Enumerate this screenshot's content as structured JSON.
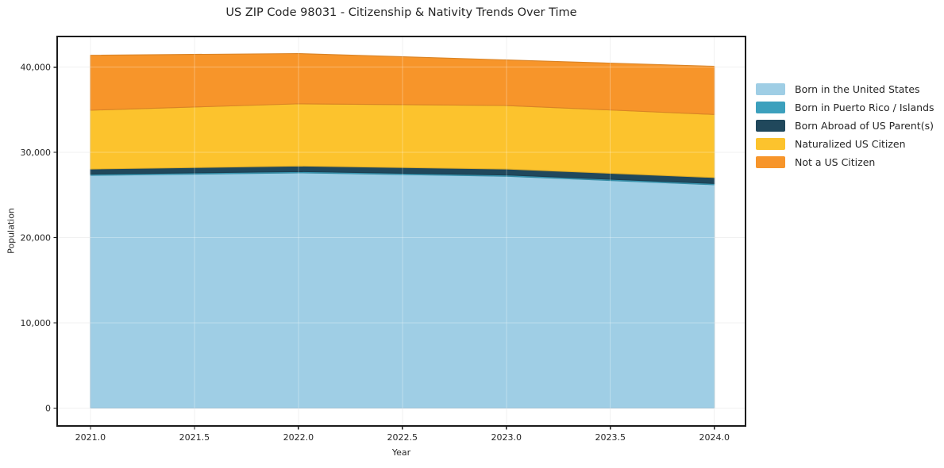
{
  "figure": {
    "background": "#ffffff",
    "spine_color": "#1a1a1a",
    "gridline_color": "#ebebeb",
    "text_color": "#262626"
  },
  "chart": {
    "title": "US ZIP Code 98031 - Citizenship & Nativity Trends Over Time",
    "xlabel": "Year",
    "ylabel": "Population",
    "x_ticks": [
      2021.0,
      2021.5,
      2022.0,
      2022.5,
      2023.0,
      2023.5,
      2024.0
    ],
    "x_ticklabels": [
      "2021.0",
      "2021.5",
      "2022.0",
      "2022.5",
      "2023.0",
      "2023.5",
      "2024.0"
    ],
    "y_ticks": [
      0,
      10000,
      20000,
      30000,
      40000
    ],
    "y_ticklabels": [
      "0",
      "10,000",
      "20,000",
      "30,000",
      "40,000"
    ]
  },
  "chart_data": {
    "type": "area",
    "stacked": true,
    "title": "US ZIP Code 98031 - Citizenship & Nativity Trends Over Time",
    "xlabel": "Year",
    "ylabel": "Population",
    "x": [
      2021,
      2022,
      2023,
      2024
    ],
    "series": [
      {
        "name": "Born in the United States",
        "color": "#9fcee5",
        "values": [
          27300,
          27600,
          27200,
          26200
        ]
      },
      {
        "name": "Born in Puerto Rico / Islands",
        "color": "#3ca0bd",
        "values": [
          150,
          150,
          150,
          150
        ]
      },
      {
        "name": "Born Abroad of US Parent(s)",
        "color": "#20485c",
        "values": [
          600,
          650,
          700,
          700
        ]
      },
      {
        "name": "Naturalized US Citizen",
        "color": "#fcc32d",
        "values": [
          6900,
          7300,
          7450,
          7400
        ]
      },
      {
        "name": "Not a US Citizen",
        "color": "#f7952a",
        "values": [
          6450,
          5900,
          5350,
          5650
        ]
      }
    ],
    "totals": [
      41400,
      41600,
      40850,
      40100
    ],
    "xlim": [
      2020.84,
      2024.15
    ],
    "ylim": [
      -2100,
      43600
    ],
    "grid": true,
    "legend_position": "right",
    "legend_frame": false
  }
}
